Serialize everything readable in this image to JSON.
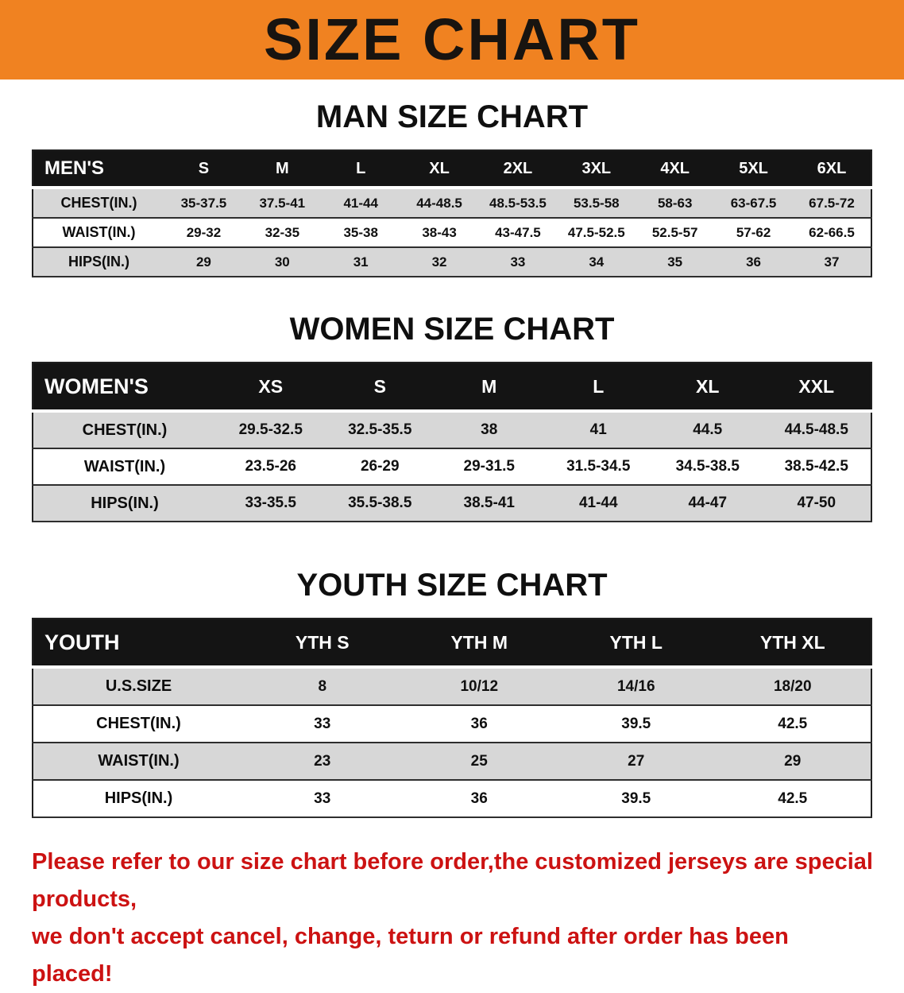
{
  "banner": {
    "title": "SIZE CHART"
  },
  "colors": {
    "banner_bg": "#F08221",
    "header_row_bg": "#141414",
    "shaded_row_bg": "#D7D7D7",
    "disclaimer_red": "#CC1212"
  },
  "sections": [
    {
      "id": "men",
      "title": "MAN SIZE CHART",
      "header": [
        "MEN'S",
        "S",
        "M",
        "L",
        "XL",
        "2XL",
        "3XL",
        "4XL",
        "5XL",
        "6XL"
      ],
      "rows": [
        [
          "CHEST(IN.)",
          "35-37.5",
          "37.5-41",
          "41-44",
          "44-48.5",
          "48.5-53.5",
          "53.5-58",
          "58-63",
          "63-67.5",
          "67.5-72"
        ],
        [
          "WAIST(IN.)",
          "29-32",
          "32-35",
          "35-38",
          "38-43",
          "43-47.5",
          "47.5-52.5",
          "52.5-57",
          "57-62",
          "62-66.5"
        ],
        [
          "HIPS(IN.)",
          "29",
          "30",
          "31",
          "32",
          "33",
          "34",
          "35",
          "36",
          "37"
        ]
      ]
    },
    {
      "id": "women",
      "title": "WOMEN SIZE CHART",
      "header": [
        "WOMEN'S",
        "XS",
        "S",
        "M",
        "L",
        "XL",
        "XXL"
      ],
      "rows": [
        [
          "CHEST(IN.)",
          "29.5-32.5",
          "32.5-35.5",
          "38",
          "41",
          "44.5",
          "44.5-48.5"
        ],
        [
          "WAIST(IN.)",
          "23.5-26",
          "26-29",
          "29-31.5",
          "31.5-34.5",
          "34.5-38.5",
          "38.5-42.5"
        ],
        [
          "HIPS(IN.)",
          "33-35.5",
          "35.5-38.5",
          "38.5-41",
          "41-44",
          "44-47",
          "47-50"
        ]
      ]
    },
    {
      "id": "youth",
      "title": "YOUTH SIZE CHART",
      "header": [
        "YOUTH",
        "YTH S",
        "YTH M",
        "YTH L",
        "YTH XL"
      ],
      "rows": [
        [
          "U.S.SIZE",
          "8",
          "10/12",
          "14/16",
          "18/20"
        ],
        [
          "CHEST(IN.)",
          "33",
          "36",
          "39.5",
          "42.5"
        ],
        [
          "WAIST(IN.)",
          "23",
          "25",
          "27",
          "29"
        ],
        [
          "HIPS(IN.)",
          "33",
          "36",
          "39.5",
          "42.5"
        ]
      ]
    }
  ],
  "footer": {
    "line1": "Please refer to our size chart before order,the customized jerseys are special products,",
    "line2": "we don't accept cancel, change, teturn or refund after order has been placed!"
  }
}
